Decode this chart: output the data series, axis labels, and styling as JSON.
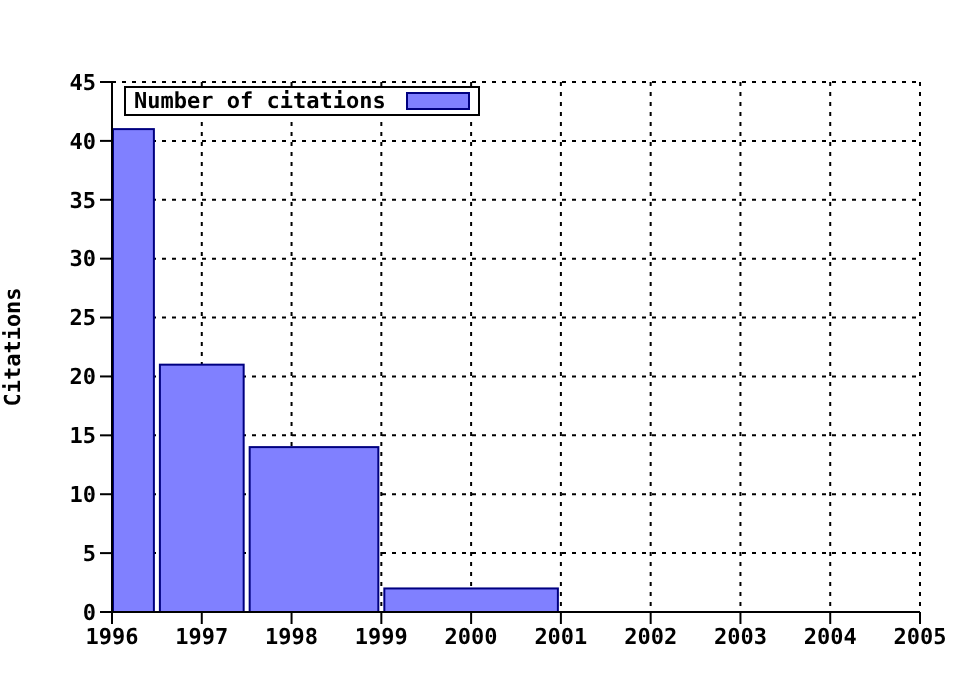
{
  "chart_data": {
    "type": "histogram",
    "ylabel": "Citations",
    "bins": [
      1996,
      1996.5,
      1997.5,
      1999,
      2001
    ],
    "series": [
      {
        "name": "Number of citations",
        "color": "#8080ff",
        "values": [
          41,
          21,
          14,
          2
        ]
      }
    ],
    "xlim": [
      1996,
      2005
    ],
    "xticks": [
      1996,
      1997,
      1998,
      1999,
      2000,
      2001,
      2002,
      2003,
      2004,
      2005
    ],
    "ylim": [
      0,
      45
    ],
    "yticks": [
      0,
      5,
      10,
      15,
      20,
      25,
      30,
      35,
      40,
      45
    ],
    "grid": true,
    "legend": "top left"
  }
}
